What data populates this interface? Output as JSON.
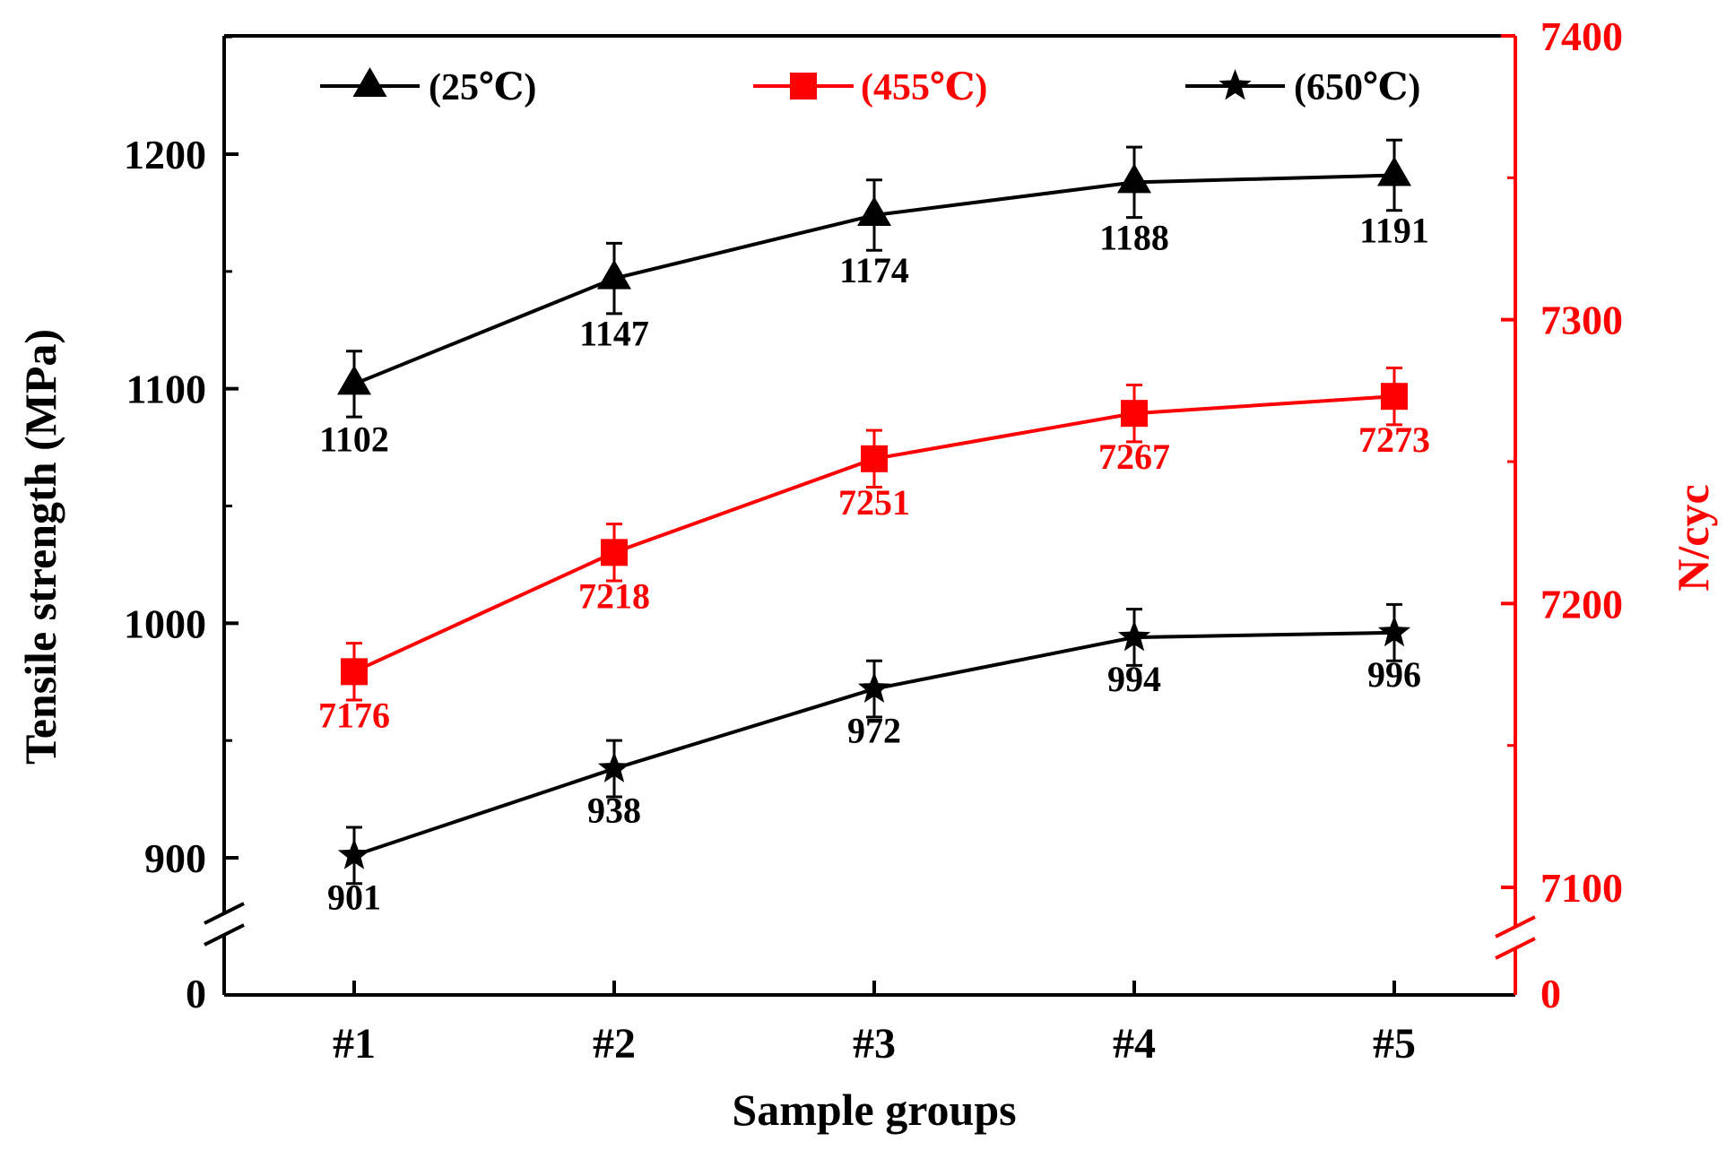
{
  "chart_data": {
    "type": "line",
    "categories": [
      "#1",
      "#2",
      "#3",
      "#4",
      "#5"
    ],
    "xlabel": "Sample groups",
    "ylabel_left": "Tensile strength (MPa)",
    "ylabel_right": "N/cyc",
    "left_axis": {
      "ylim": [
        870,
        1250
      ],
      "ticks": [
        900,
        1000,
        1100,
        1200
      ],
      "tick_labels": [
        "900",
        "1000",
        "1100",
        "1200"
      ],
      "break_label": "0"
    },
    "right_axis": {
      "ylim": [
        7063,
        7400
      ],
      "ticks": [
        7100,
        7200,
        7300,
        7400
      ],
      "tick_labels": [
        "7100",
        "7200",
        "7300",
        "7400"
      ],
      "break_label": "0",
      "color": "#ff0000"
    },
    "series": [
      {
        "name": "(25℃)",
        "axis": "left",
        "color": "#000000",
        "marker": "triangle",
        "values": [
          1102,
          1147,
          1174,
          1188,
          1191
        ],
        "labels": [
          "1102",
          "1147",
          "1174",
          "1188",
          "1191"
        ],
        "error": [
          14,
          15,
          15,
          15,
          15
        ]
      },
      {
        "name": "(455℃)",
        "axis": "right",
        "color": "#ff0000",
        "marker": "square",
        "values": [
          7176,
          7218,
          7251,
          7267,
          7273
        ],
        "labels": [
          "7176",
          "7218",
          "7251",
          "7267",
          "7273"
        ],
        "error": [
          10,
          10,
          10,
          10,
          10
        ]
      },
      {
        "name": "(650℃)",
        "axis": "left",
        "color": "#000000",
        "marker": "star",
        "values": [
          901,
          938,
          972,
          994,
          996
        ],
        "labels": [
          "901",
          "938",
          "972",
          "994",
          "996"
        ],
        "error": [
          12,
          12,
          12,
          12,
          12
        ]
      }
    ]
  }
}
